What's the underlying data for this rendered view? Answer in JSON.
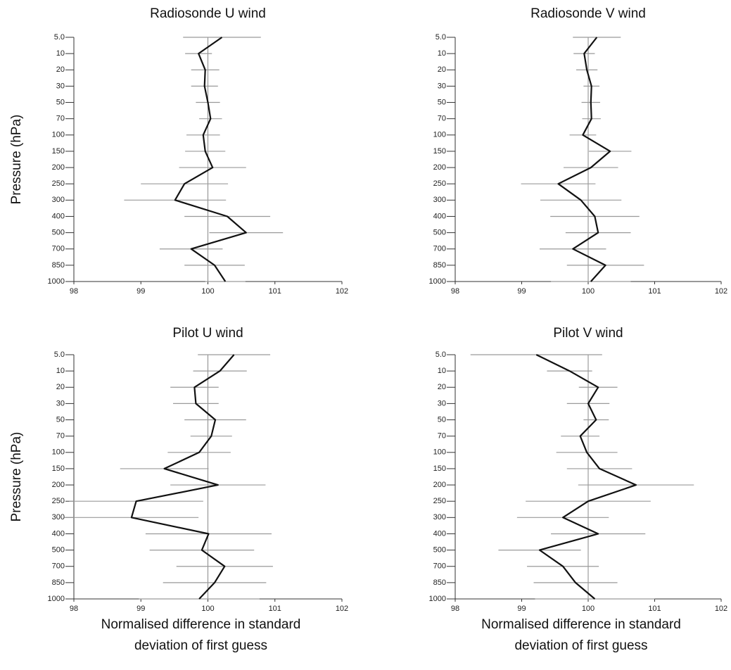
{
  "chart_data": [
    {
      "type": "profile",
      "title": "Radiosonde U wind",
      "ylabel": "Pressure (hPa)",
      "categories": [
        "5.0",
        "10",
        "20",
        "30",
        "50",
        "70",
        "100",
        "150",
        "200",
        "250",
        "300",
        "400",
        "500",
        "700",
        "850",
        "1000"
      ],
      "values": [
        100.21,
        99.86,
        99.96,
        99.95,
        100.0,
        100.04,
        99.93,
        99.96,
        100.07,
        99.65,
        99.51,
        100.29,
        100.57,
        99.75,
        100.1,
        100.26
      ],
      "errors": [
        0.58,
        0.2,
        0.21,
        0.2,
        0.18,
        0.17,
        0.25,
        0.3,
        0.5,
        0.65,
        0.76,
        0.64,
        0.55,
        0.47,
        0.45,
        0.3
      ],
      "color": "#111111",
      "error_color": "#9a9a9a",
      "reference": 100,
      "xlim": [
        98,
        102
      ],
      "xticks": [
        98,
        99,
        100,
        101,
        102
      ]
    },
    {
      "type": "profile",
      "title": "Radiosonde V wind",
      "categories": [
        "5.0",
        "10",
        "20",
        "30",
        "50",
        "70",
        "100",
        "150",
        "200",
        "250",
        "300",
        "400",
        "500",
        "700",
        "850",
        "1000"
      ],
      "values": [
        100.13,
        99.94,
        99.98,
        100.05,
        100.04,
        100.05,
        99.92,
        100.33,
        100.04,
        99.55,
        99.89,
        100.1,
        100.15,
        99.77,
        100.26,
        100.04
      ],
      "errors": [
        0.36,
        0.16,
        0.16,
        0.12,
        0.14,
        0.14,
        0.2,
        0.32,
        0.41,
        0.56,
        0.61,
        0.67,
        0.49,
        0.5,
        0.58,
        0.6
      ],
      "color": "#111111",
      "error_color": "#9a9a9a",
      "reference": 100,
      "xlim": [
        98,
        102
      ],
      "xticks": [
        98,
        99,
        100,
        101,
        102
      ]
    },
    {
      "type": "profile",
      "title": "Pilot U wind",
      "ylabel": "Pressure (hPa)",
      "xlabel": [
        "Normalised difference in standard",
        "deviation of first guess"
      ],
      "categories": [
        "5.0",
        "10",
        "20",
        "30",
        "50",
        "70",
        "100",
        "150",
        "200",
        "250",
        "300",
        "400",
        "500",
        "700",
        "850",
        "1000"
      ],
      "values": [
        100.39,
        100.18,
        99.8,
        99.82,
        100.11,
        100.05,
        99.87,
        99.35,
        100.15,
        98.93,
        98.86,
        100.01,
        99.91,
        100.25,
        100.1,
        99.87
      ],
      "errors": [
        0.54,
        0.4,
        0.36,
        0.34,
        0.46,
        0.31,
        0.47,
        0.66,
        0.71,
        1.0,
        1.0,
        0.94,
        0.78,
        0.72,
        0.77,
        0.9
      ],
      "color": "#111111",
      "error_color": "#9a9a9a",
      "reference": 100,
      "xlim": [
        98,
        102
      ],
      "xticks": [
        98,
        99,
        100,
        101,
        102
      ]
    },
    {
      "type": "profile",
      "title": "Pilot V wind",
      "xlabel": [
        "Normalised difference in standard",
        "deviation of first guess"
      ],
      "categories": [
        "5.0",
        "10",
        "20",
        "30",
        "50",
        "70",
        "100",
        "150",
        "200",
        "250",
        "300",
        "400",
        "500",
        "700",
        "850",
        "1000"
      ],
      "values": [
        99.22,
        99.72,
        100.15,
        100.0,
        100.12,
        99.88,
        99.98,
        100.17,
        100.72,
        100.0,
        99.62,
        100.15,
        99.27,
        99.62,
        99.81,
        100.1
      ],
      "errors": [
        0.99,
        0.34,
        0.29,
        0.32,
        0.19,
        0.29,
        0.46,
        0.49,
        0.87,
        0.94,
        0.69,
        0.71,
        0.62,
        0.54,
        0.63,
        0.9
      ],
      "color": "#111111",
      "error_color": "#9a9a9a",
      "reference": 100,
      "xlim": [
        98,
        102
      ],
      "xticks": [
        98,
        99,
        100,
        101,
        102
      ]
    }
  ]
}
